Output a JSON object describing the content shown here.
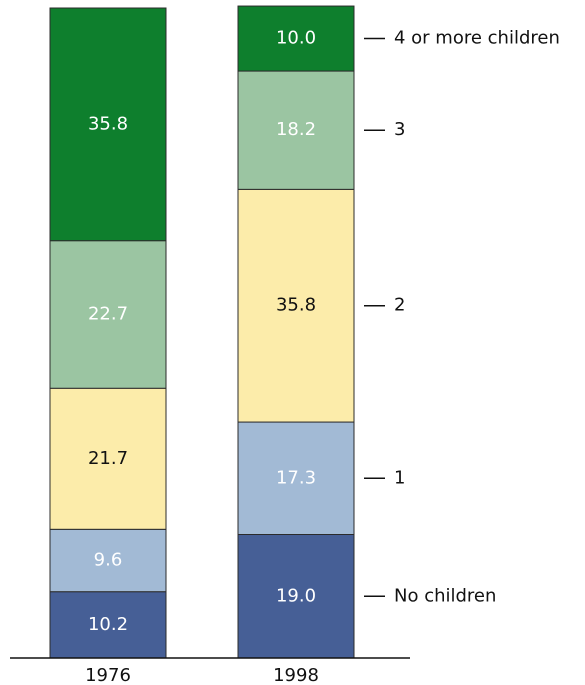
{
  "chart_data": {
    "type": "bar",
    "stacked": true,
    "categories": [
      "1976",
      "1998"
    ],
    "series": [
      {
        "name": "No children",
        "values": [
          10.2,
          19.0
        ],
        "color": "#465f96",
        "text_color": "#ffffff"
      },
      {
        "name": "1",
        "values": [
          9.6,
          17.3
        ],
        "color": "#a2bad5",
        "text_color": "#ffffff"
      },
      {
        "name": "2",
        "values": [
          21.7,
          35.8
        ],
        "color": "#fcecaa",
        "text_color": "#111111"
      },
      {
        "name": "3",
        "values": [
          22.7,
          18.2
        ],
        "color": "#9bc5a2",
        "text_color": "#ffffff"
      },
      {
        "name": "4 or more children",
        "values": [
          35.8,
          10.0
        ],
        "color": "#0e7f2d",
        "text_color": "#ffffff"
      }
    ],
    "data_labels": [
      [
        "10.2",
        "19.0"
      ],
      [
        "9.6",
        "17.3"
      ],
      [
        "21.7",
        "35.8"
      ],
      [
        "22.7",
        "18.2"
      ],
      [
        "35.8",
        "10.0"
      ]
    ],
    "legend": {
      "placement": "right",
      "labels": [
        "No children",
        "1",
        "2",
        "3",
        "4 or more children"
      ]
    },
    "title": "",
    "xlabel": "",
    "ylabel": "",
    "ylim": [
      0,
      100
    ],
    "grid": false
  }
}
